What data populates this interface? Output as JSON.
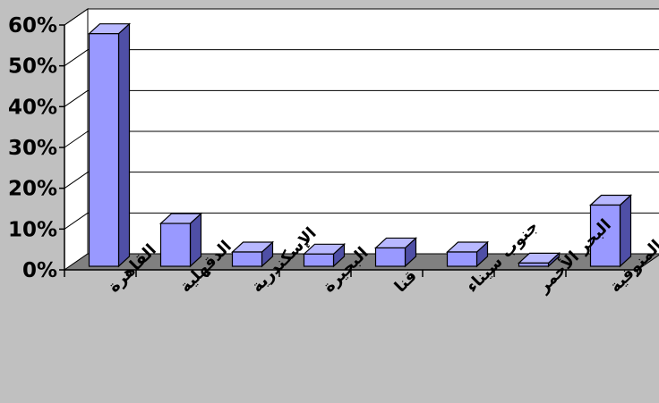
{
  "chart_data": {
    "type": "bar",
    "categories": [
      "القاهرة",
      "الدقهلية",
      "الإسكندرية",
      "البحيرة",
      "قنا",
      "جنوب سيناء",
      "البحر الأحمر",
      "المنوفية"
    ],
    "values": [
      57,
      10.5,
      3.5,
      3,
      4.5,
      3.5,
      0.8,
      15
    ],
    "ylim": [
      0,
      60
    ],
    "yticks": [
      0,
      10,
      20,
      30,
      40,
      50,
      60
    ],
    "ytick_format": "{v}%",
    "grid": true,
    "legend": "none",
    "style": "3d",
    "colors": {
      "bar_front": "#9999ff",
      "bar_side": "#4f4fa6",
      "bar_top": "#b8b8ff",
      "floor": "#808080",
      "wall": "#ffffff",
      "background": "#c0c0c0"
    }
  }
}
